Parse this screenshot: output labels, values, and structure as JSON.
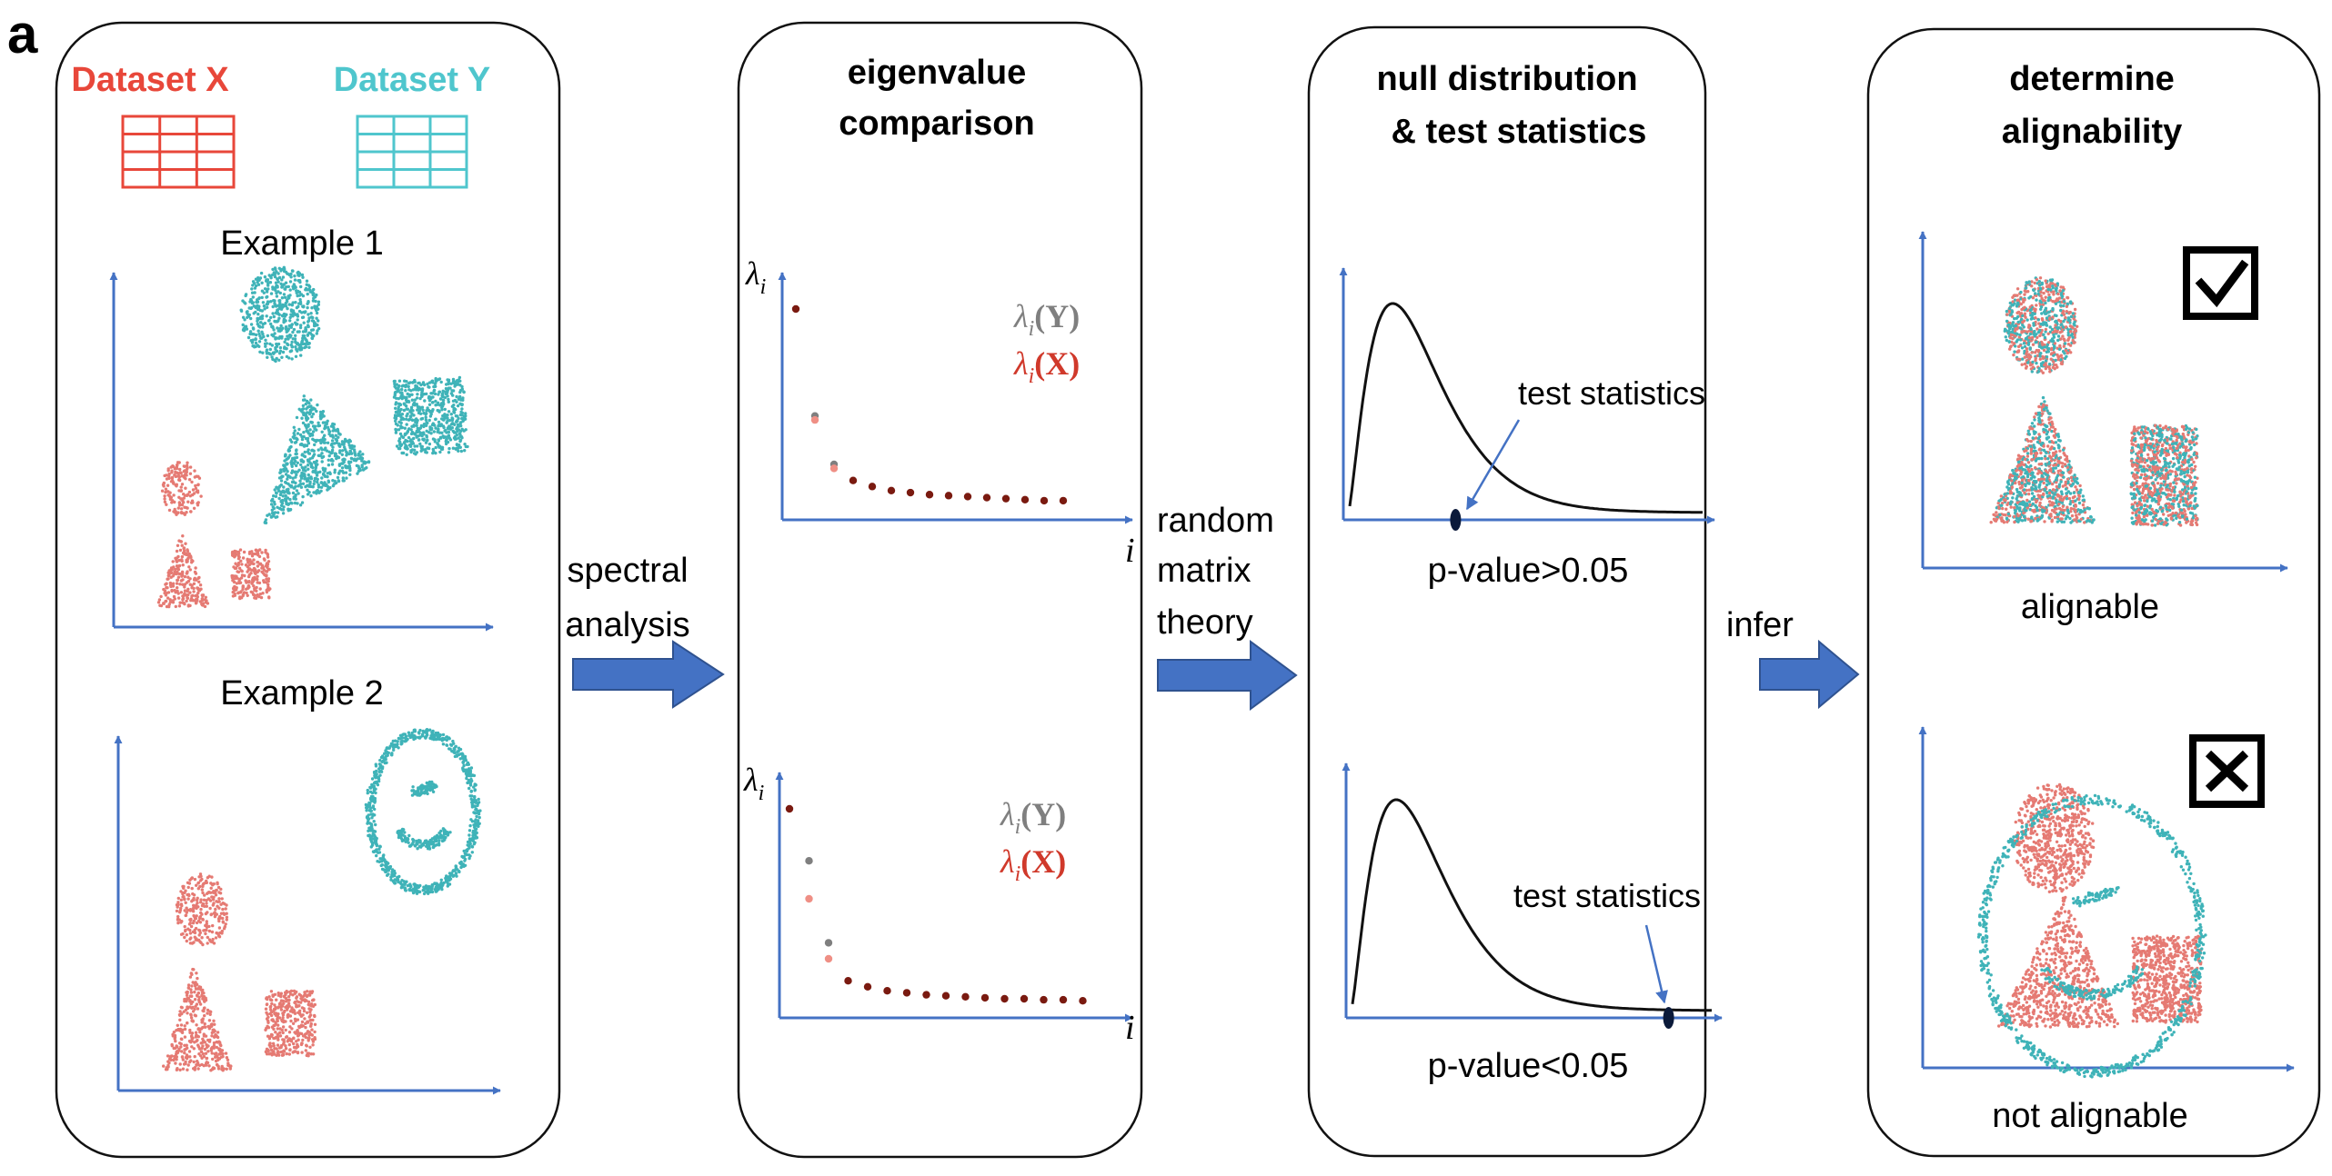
{
  "panel_label": "a",
  "colors": {
    "dataset_x": "#e8473a",
    "dataset_y": "#4fc6cd",
    "scatter_x": "#e57a73",
    "scatter_y": "#3fb3b8",
    "axis": "#4472c4",
    "arrow_fill": "#4472c4",
    "arrow_stroke": "#2f528f",
    "eig_y": "#7f7f7f",
    "eig_x": "#d0392b",
    "eig_dot": "#7a1a10"
  },
  "panel1": {
    "dataset_x_label": "Dataset X",
    "dataset_y_label": "Dataset Y",
    "example1_label": "Example 1",
    "example2_label": "Example 2"
  },
  "arrows": {
    "spectral_line1": "spectral",
    "spectral_line2": "analysis",
    "rmt_line1": "random",
    "rmt_line2": "matrix",
    "rmt_line3": "theory",
    "infer_label": "infer"
  },
  "panel2": {
    "title_line1": "eigenvalue",
    "title_line2": "comparison",
    "y_symbol": "λ",
    "y_sub": "i",
    "x_symbol": "i",
    "legend_y_sym": "λ",
    "legend_y_sub": "i",
    "legend_y_arg": "(Y)",
    "legend_x_sym": "λ",
    "legend_x_sub": "i",
    "legend_x_arg": "(X)"
  },
  "panel3": {
    "title_line1": "null distribution",
    "title_line2": "& test statistics",
    "top_annotation": "test statistics",
    "top_pvalue": "p-value>0.05",
    "bottom_annotation": "test statistics",
    "bottom_pvalue": "p-value<0.05"
  },
  "panel4": {
    "title_line1": "determine",
    "title_line2": "alignability",
    "top_label": "alignable",
    "bottom_label": "not alignable",
    "top_checkbox": "check",
    "bottom_checkbox": "cross"
  },
  "chart_data": [
    {
      "type": "scatter",
      "title": "eigenvalue comparison (example 1)",
      "xlabel": "i",
      "ylabel": "λ_i",
      "series": [
        {
          "name": "λ_i(Y)",
          "values": [
            1.0,
            0.47,
            0.23,
            0.15,
            0.12,
            0.1,
            0.09,
            0.08,
            0.075,
            0.07,
            0.065,
            0.06,
            0.055,
            0.05,
            0.05
          ]
        },
        {
          "name": "λ_i(X)",
          "values": [
            1.0,
            0.45,
            0.21,
            0.15,
            0.12,
            0.1,
            0.09,
            0.08,
            0.075,
            0.07,
            0.065,
            0.06,
            0.055,
            0.05,
            0.05
          ]
        }
      ]
    },
    {
      "type": "scatter",
      "title": "eigenvalue comparison (example 2)",
      "xlabel": "i",
      "ylabel": "λ_i",
      "series": [
        {
          "name": "λ_i(Y)",
          "values": [
            1.0,
            0.74,
            0.33,
            0.14,
            0.11,
            0.09,
            0.08,
            0.07,
            0.065,
            0.06,
            0.055,
            0.05,
            0.05,
            0.045,
            0.045,
            0.04
          ]
        },
        {
          "name": "λ_i(X)",
          "values": [
            1.0,
            0.55,
            0.25,
            0.14,
            0.11,
            0.09,
            0.08,
            0.07,
            0.065,
            0.06,
            0.055,
            0.05,
            0.05,
            0.045,
            0.045,
            0.04
          ]
        }
      ]
    },
    {
      "type": "line",
      "title": "null distribution (example 1)",
      "annotation": "test statistics",
      "result": "p-value>0.05",
      "test_statistic_position": 0.3
    },
    {
      "type": "line",
      "title": "null distribution (example 2)",
      "annotation": "test statistics",
      "result": "p-value<0.05",
      "test_statistic_position": 0.88
    }
  ]
}
